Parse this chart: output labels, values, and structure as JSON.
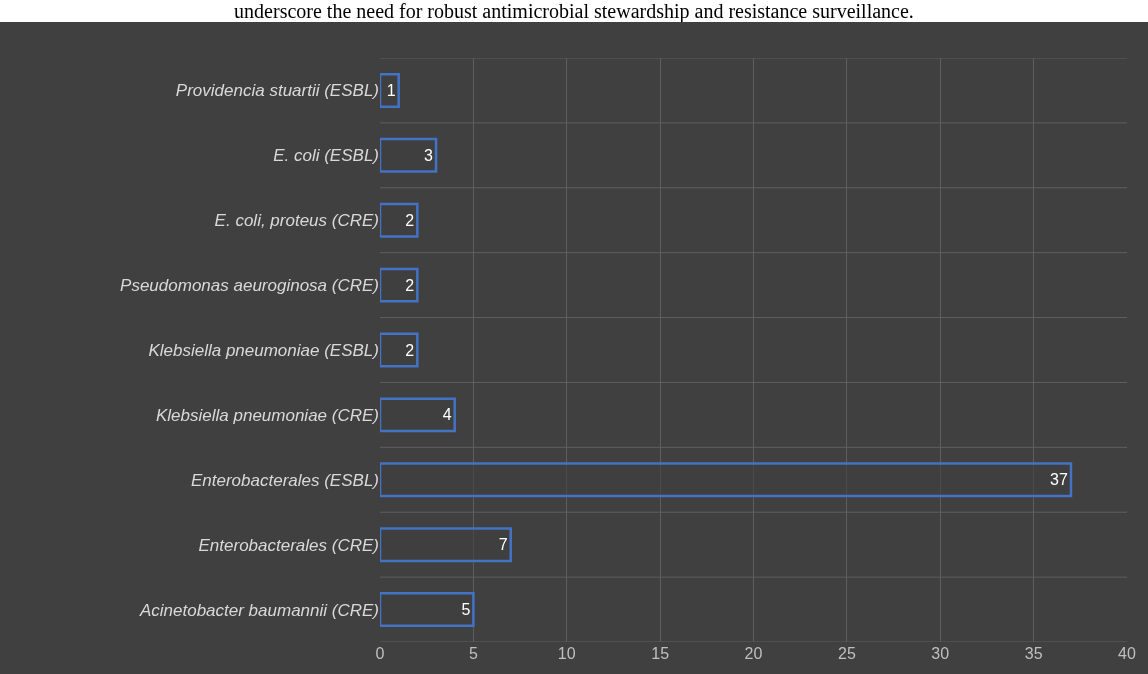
{
  "chart_data": {
    "type": "bar",
    "orientation": "horizontal",
    "annotations": [
      "underscore the need for robust antimicrobial stewardship and resistance surveillance."
    ],
    "categories": [
      "Providencia stuartii (ESBL)",
      "E. coli (ESBL)",
      "E. coli, proteus (CRE)",
      "Pseudomonas aeuroginosa (CRE)",
      "Klebsiella pneumoniae (ESBL)",
      "Klebsiella pneumoniae (CRE)",
      "Enterobacterales (ESBL)",
      "Enterobacterales (CRE)",
      "Acinetobacter baumannii (CRE)"
    ],
    "values": [
      1,
      3,
      2,
      2,
      2,
      4,
      37,
      7,
      5
    ],
    "color": "#4472c4",
    "xlim": [
      0,
      40
    ],
    "xticks": [
      0,
      5,
      10,
      15,
      20,
      25,
      30,
      35,
      40
    ],
    "grid": true,
    "data_labels": true
  }
}
